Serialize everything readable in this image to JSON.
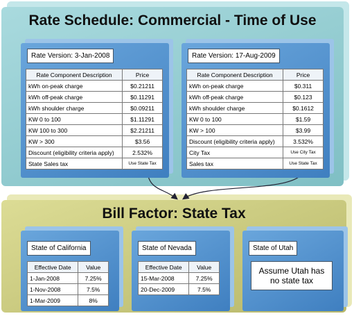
{
  "rate_schedule": {
    "title": "Rate Schedule: Commercial - Time of Use",
    "versions": [
      {
        "label": "Rate Version: 3-Jan-2008",
        "header": [
          "Rate Component Description",
          "Price"
        ],
        "rows": [
          [
            "kWh on-peak charge",
            "$0.21211"
          ],
          [
            "kWh off-peak charge",
            "$0.11291"
          ],
          [
            "kWh shoulder charge",
            "$0.09211"
          ],
          [
            "KW 0 to 100",
            "$1.11291"
          ],
          [
            "KW 100 to 300",
            "$2.21211"
          ],
          [
            "KW > 300",
            "$3.56"
          ],
          [
            "Discount (eligibility criteria apply)",
            "2.532%"
          ],
          [
            "State Sales tax",
            "Use State Tax"
          ]
        ]
      },
      {
        "label": "Rate Version: 17-Aug-2009",
        "header": [
          "Rate Component Description",
          "Price"
        ],
        "rows": [
          [
            "kWh on-peak charge",
            "$0.311"
          ],
          [
            "kWh off-peak charge",
            "$0.123"
          ],
          [
            "kWh shoulder charge",
            "$0.1612"
          ],
          [
            "KW 0 to 100",
            "$1.59"
          ],
          [
            "KW > 100",
            "$3.99"
          ],
          [
            "Discount (eligibility criteria apply)",
            "3.532%"
          ],
          [
            "City Tax",
            "Use City Tax"
          ],
          [
            "Sales tax",
            "Use State Tax"
          ]
        ]
      }
    ]
  },
  "bill_factor": {
    "title": "Bill Factor: State Tax",
    "states": [
      {
        "label": "State of California",
        "header": [
          "Effective Date",
          "Value"
        ],
        "rows": [
          [
            "1-Jan-2008",
            "7.25%"
          ],
          [
            "1-Nov-2008",
            "7.5%"
          ],
          [
            "1-Mar-2009",
            "8%"
          ]
        ]
      },
      {
        "label": "State of Nevada",
        "header": [
          "Effective Date",
          "Value"
        ],
        "rows": [
          [
            "15-Mar-2008",
            "7.25%"
          ],
          [
            "20-Dec-2009",
            "7.5%"
          ]
        ]
      },
      {
        "label": "State of Utah",
        "note": "Assume Utah has no state tax"
      }
    ]
  }
}
